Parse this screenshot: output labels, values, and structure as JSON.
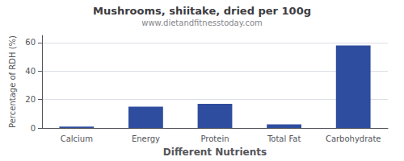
{
  "chart_data": {
    "type": "bar",
    "title": "Mushrooms, shiitake, dried per 100g",
    "subtitle": "www.dietandfitnesstoday.com",
    "xlabel": "Different Nutrients",
    "ylabel": "Percentage of RDH (%)",
    "categories": [
      "Calcium",
      "Energy",
      "Protein",
      "Total Fat",
      "Carbohydrate"
    ],
    "values": [
      1.0,
      15.0,
      17.0,
      2.5,
      58.0
    ],
    "color": "#2e4d9e",
    "ylim": [
      0,
      65
    ],
    "yticks": [
      0,
      20,
      40,
      60
    ],
    "grid": true
  }
}
